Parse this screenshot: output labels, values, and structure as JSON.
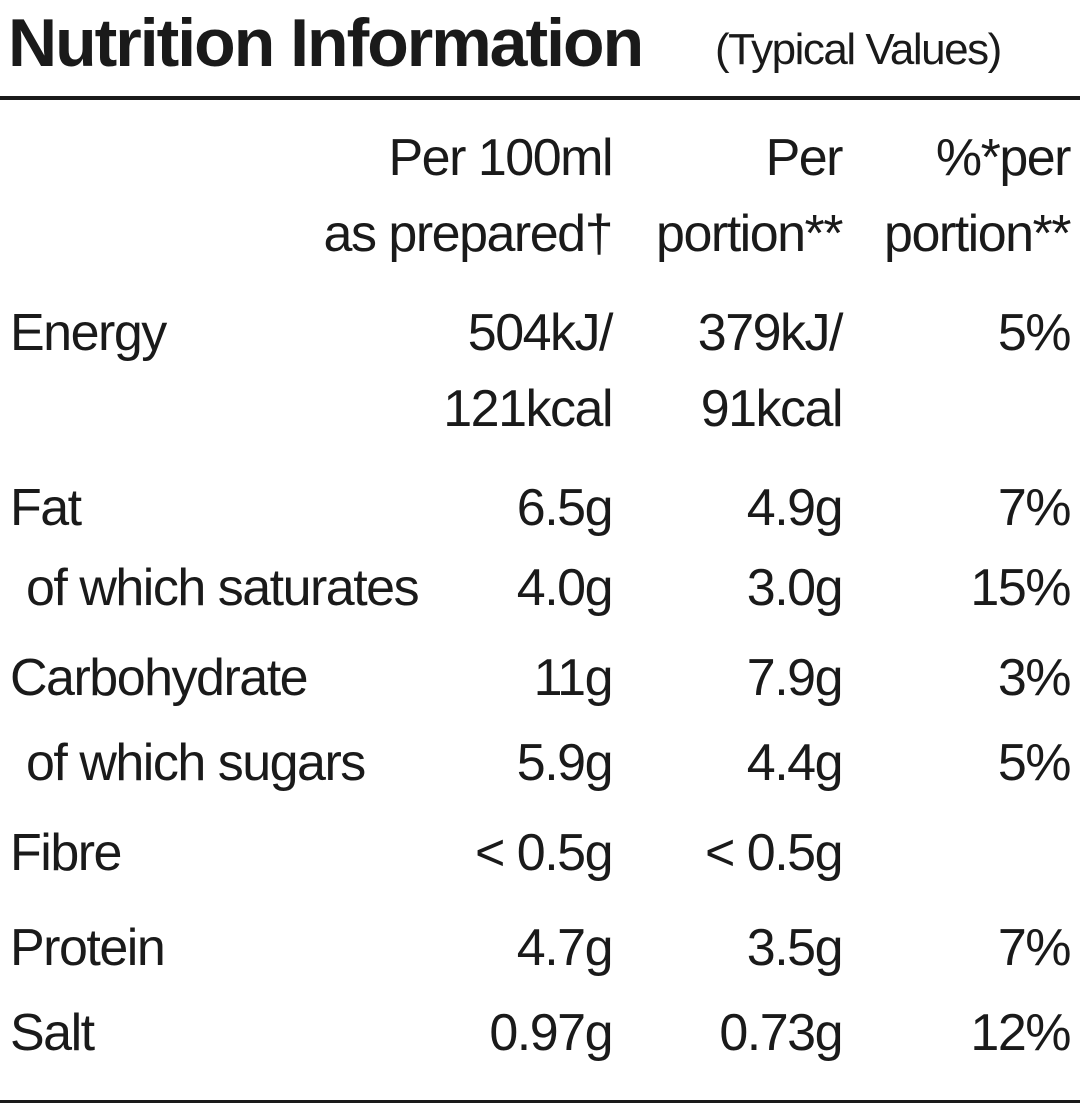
{
  "header": {
    "title": "Nutrition Information",
    "subtitle": "(Typical Values)"
  },
  "table": {
    "columns": [
      [
        "Per 100ml",
        "as prepared†"
      ],
      [
        "Per",
        "portion**"
      ],
      [
        "%*per",
        "portion**"
      ]
    ],
    "rows": [
      {
        "label": "Energy",
        "cells": [
          [
            "504kJ/",
            "121kcal"
          ],
          [
            "379kJ/",
            "91kcal"
          ],
          [
            "5%"
          ]
        ]
      },
      {
        "label": "Fat",
        "cells": [
          [
            "6.5g"
          ],
          [
            "4.9g"
          ],
          [
            "7%"
          ]
        ]
      },
      {
        "label": "of which saturates",
        "cells": [
          [
            "4.0g"
          ],
          [
            "3.0g"
          ],
          [
            "15%"
          ]
        ]
      },
      {
        "label": "Carbohydrate",
        "cells": [
          [
            "11g"
          ],
          [
            "7.9g"
          ],
          [
            "3%"
          ]
        ]
      },
      {
        "label": "of which sugars",
        "cells": [
          [
            "5.9g"
          ],
          [
            "4.4g"
          ],
          [
            "5%"
          ]
        ]
      },
      {
        "label": "Fibre",
        "cells": [
          [
            "< 0.5g"
          ],
          [
            "< 0.5g"
          ]
        ]
      },
      {
        "label": "Protein",
        "cells": [
          [
            "4.7g"
          ],
          [
            "3.5g"
          ],
          [
            "7%"
          ]
        ]
      },
      {
        "label": "Salt",
        "cells": [
          [
            "0.97g"
          ],
          [
            "0.73g"
          ],
          [
            "12%"
          ]
        ]
      }
    ]
  }
}
